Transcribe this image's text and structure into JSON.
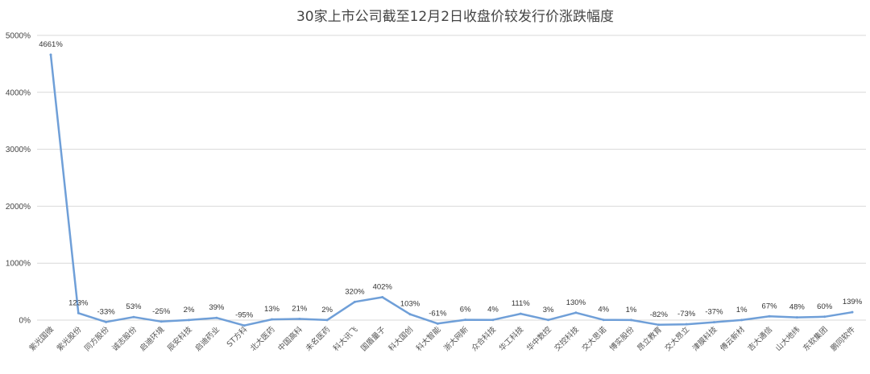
{
  "chart_data": {
    "type": "line",
    "title": "30家上市公司截至12月2日收盘价较发行价涨跌幅度",
    "xlabel": "",
    "ylabel": "",
    "ylim": [
      0,
      5000
    ],
    "yticks": [
      0,
      1000,
      2000,
      3000,
      4000,
      5000
    ],
    "ytick_labels": [
      "0%",
      "1000%",
      "2000%",
      "3000%",
      "4000%",
      "5000%"
    ],
    "grid": true,
    "legend": false,
    "series_color": "#6f9fd8",
    "categories": [
      "紫光国微",
      "紫光股份",
      "同方股份",
      "诚志股份",
      "启迪环境",
      "辰安科技",
      "启迪药业",
      "ST方科",
      "北大医药",
      "中国高科",
      "未名医药",
      "科大讯飞",
      "国盾量子",
      "科大国创",
      "科大智能",
      "浙大网新",
      "众合科技",
      "华工科技",
      "华中数控",
      "交控科技",
      "交大思诺",
      "博实股份",
      "昂立教育",
      "交大昂立",
      "津膜科技",
      "傅云新材",
      "吉大通信",
      "山大地纬",
      "东软集团",
      "鹏同软件"
    ],
    "values": [
      4661,
      123,
      -33,
      53,
      -25,
      2,
      39,
      -95,
      13,
      21,
      2,
      320,
      402,
      103,
      -61,
      6,
      4,
      111,
      3,
      130,
      4,
      1,
      -82,
      -73,
      -37,
      1,
      67,
      48,
      60,
      139
    ],
    "value_labels": [
      "4661%",
      "123%",
      "-33%",
      "53%",
      "-25%",
      "2%",
      "39%",
      "-95%",
      "13%",
      "21%",
      "2%",
      "320%",
      "402%",
      "103%",
      "-61%",
      "6%",
      "4%",
      "111%",
      "3%",
      "130%",
      "4%",
      "1%",
      "-82%",
      "-73%",
      "-37%",
      "1%",
      "67%",
      "48%",
      "60%",
      "139%"
    ]
  }
}
